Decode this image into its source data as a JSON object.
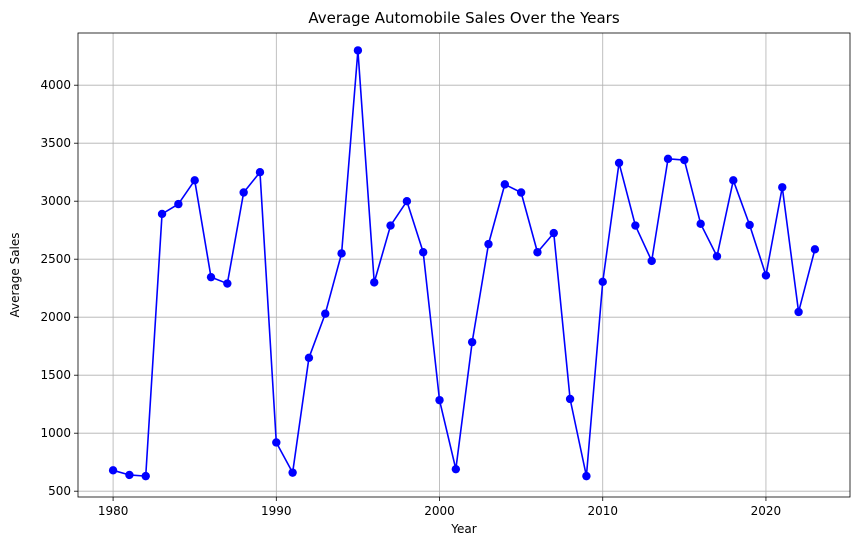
{
  "chart_data": {
    "type": "line",
    "title": "Average Automobile Sales Over the Years",
    "xlabel": "Year",
    "ylabel": "Average Sales",
    "xlim": [
      1977.85,
      2025.15
    ],
    "ylim": [
      450,
      4450
    ],
    "xticks": [
      1980,
      1990,
      2000,
      2010,
      2020
    ],
    "yticks": [
      500,
      1000,
      1500,
      2000,
      2500,
      3000,
      3500,
      4000
    ],
    "grid": true,
    "series": [
      {
        "color": "#0000ff",
        "marker": "circle",
        "x": [
          1980,
          1981,
          1982,
          1983,
          1984,
          1985,
          1986,
          1987,
          1988,
          1989,
          1990,
          1991,
          1992,
          1993,
          1994,
          1995,
          1996,
          1997,
          1998,
          1999,
          2000,
          2001,
          2002,
          2003,
          2004,
          2005,
          2006,
          2007,
          2008,
          2009,
          2010,
          2011,
          2012,
          2013,
          2014,
          2015,
          2016,
          2017,
          2018,
          2019,
          2020,
          2021,
          2022,
          2023
        ],
        "y": [
          680,
          640,
          630,
          2890,
          2975,
          3180,
          2345,
          2290,
          3075,
          3250,
          920,
          660,
          1650,
          2030,
          2550,
          4300,
          2300,
          2790,
          3000,
          2560,
          1285,
          690,
          1785,
          2630,
          3145,
          3075,
          2560,
          2725,
          1295,
          630,
          2305,
          3330,
          2790,
          2485,
          3365,
          3355,
          2805,
          2525,
          3180,
          2795,
          2360,
          3120,
          2045,
          2585
        ]
      }
    ]
  }
}
